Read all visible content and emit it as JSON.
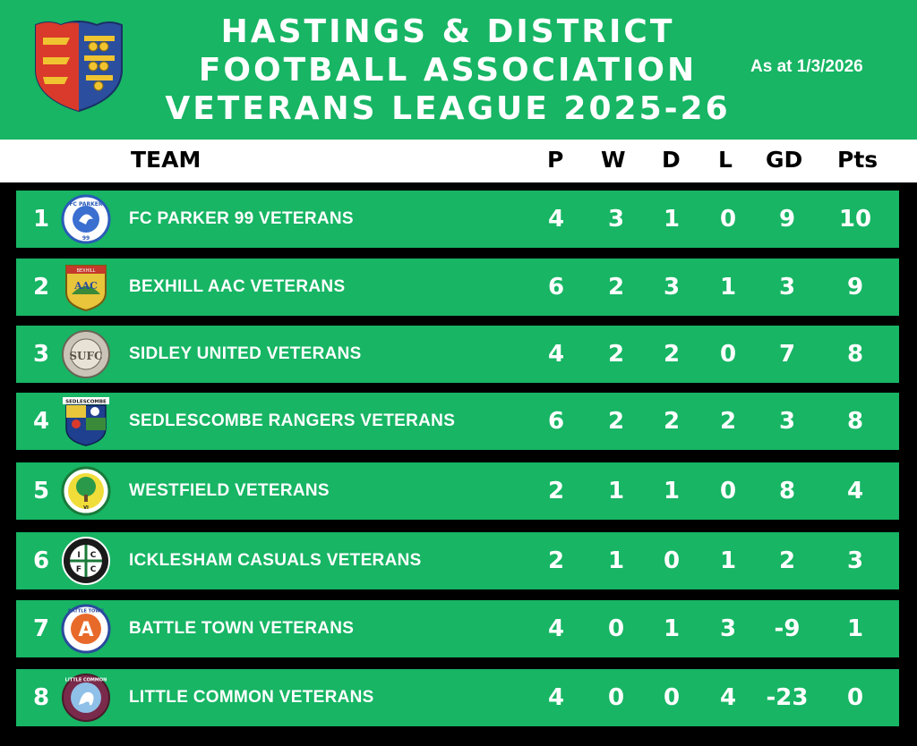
{
  "header": {
    "title_lines": [
      "HASTINGS & DISTRICT",
      "FOOTBALL ASSOCIATION",
      "VETERANS LEAGUE 2025-26"
    ],
    "as_at": "As at 1/3/2026"
  },
  "columns": {
    "team": "TEAM",
    "p": "P",
    "w": "W",
    "d": "D",
    "l": "L",
    "gd": "GD",
    "pts": "Pts"
  },
  "rows": [
    {
      "pos": "1",
      "team": "FC PARKER 99 VETERANS",
      "p": "4",
      "w": "3",
      "d": "1",
      "l": "0",
      "gd": "9",
      "pts": "10",
      "crest_text": "FC PARKER",
      "crest_icon": "fc-parker-crest-icon"
    },
    {
      "pos": "2",
      "team": "BEXHILL AAC VETERANS",
      "p": "6",
      "w": "2",
      "d": "3",
      "l": "1",
      "gd": "3",
      "pts": "9",
      "crest_text": "BEXHILL",
      "crest_icon": "bexhill-crest-icon"
    },
    {
      "pos": "3",
      "team": "SIDLEY UNITED VETERANS",
      "p": "4",
      "w": "2",
      "d": "2",
      "l": "0",
      "gd": "7",
      "pts": "8",
      "crest_text": "SUFC",
      "crest_icon": "sidley-crest-icon"
    },
    {
      "pos": "4",
      "team": "SEDLESCOMBE RANGERS VETERANS",
      "p": "6",
      "w": "2",
      "d": "2",
      "l": "2",
      "gd": "3",
      "pts": "8",
      "crest_text": "SEDLESCOMBE",
      "crest_icon": "sedlescombe-crest-icon"
    },
    {
      "pos": "5",
      "team": "WESTFIELD VETERANS",
      "p": "2",
      "w": "1",
      "d": "1",
      "l": "0",
      "gd": "8",
      "pts": "4",
      "crest_text": "VI",
      "crest_icon": "westfield-crest-icon"
    },
    {
      "pos": "6",
      "team": "ICKLESHAM CASUALS VETERANS",
      "p": "2",
      "w": "1",
      "d": "0",
      "l": "1",
      "gd": "2",
      "pts": "3",
      "crest_text": "ICFC",
      "crest_icon": "icklesham-crest-icon"
    },
    {
      "pos": "7",
      "team": "BATTLE TOWN VETERANS",
      "p": "4",
      "w": "0",
      "d": "1",
      "l": "3",
      "gd": "-9",
      "pts": "1",
      "crest_text": "BATTLE TOWN",
      "crest_icon": "battle-town-crest-icon"
    },
    {
      "pos": "8",
      "team": "LITTLE COMMON VETERANS",
      "p": "4",
      "w": "0",
      "d": "0",
      "l": "4",
      "gd": "-23",
      "pts": "0",
      "crest_text": "LITTLE COMMON",
      "crest_icon": "little-common-crest-icon"
    }
  ],
  "colors": {
    "green": "#17b564",
    "black": "#000000",
    "white": "#ffffff"
  }
}
